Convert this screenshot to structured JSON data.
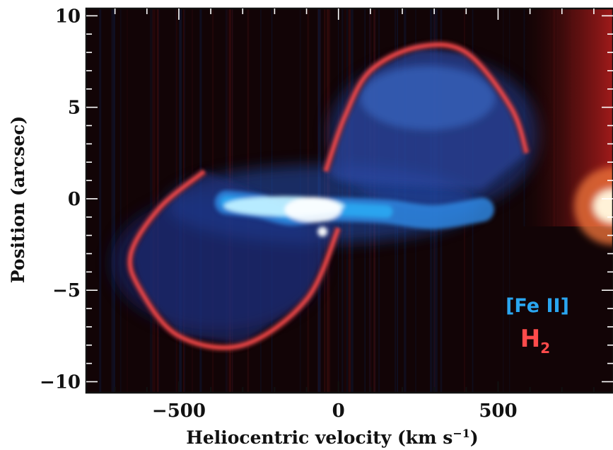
{
  "chart_data": {
    "type": "heatmap",
    "title": "",
    "xlabel_main": "Heliocentric velocity (km s",
    "xlabel_sup": "−1",
    "xlabel_end": ")",
    "ylabel": "Position (arcsec)",
    "xlim": [
      -790,
      860
    ],
    "ylim": [
      -10.6,
      10.4
    ],
    "x_ticks": [
      -500,
      0,
      500
    ],
    "x_tick_labels": [
      "−500",
      "0",
      "500"
    ],
    "y_ticks": [
      10,
      5,
      0,
      -5,
      -10
    ],
    "y_tick_labels": [
      "10",
      "5",
      "0",
      "−5",
      "−10"
    ],
    "minor_x_ticks": [
      -700,
      -600,
      -400,
      -300,
      -200,
      -100,
      100,
      200,
      300,
      400,
      600,
      700,
      800
    ],
    "minor_y_ticks": [
      9,
      8,
      7,
      6,
      4,
      3,
      2,
      1,
      -1,
      -2,
      -3,
      -4,
      -6,
      -7,
      -8,
      -9
    ],
    "background_color": "#120406",
    "series": [
      {
        "name": "[Fe II]",
        "color": "#2aa6f0",
        "structure": "bright inner jet near position 0 plus faint bipolar lobes",
        "core_points": [
          [
            -350,
            -0.2
          ],
          [
            -250,
            -0.4
          ],
          [
            -150,
            -0.8
          ],
          [
            -60,
            -0.6
          ],
          [
            30,
            -0.6
          ],
          [
            150,
            -0.7
          ],
          [
            300,
            -1.0
          ],
          [
            450,
            -0.6
          ]
        ]
      },
      {
        "name": "H2",
        "color": "#ff4b4b",
        "structure": "thin limb-brightened shells of the two bipolar lobes",
        "lower_lobe_shell": [
          [
            0,
            -1.6
          ],
          [
            -100,
            -5.5
          ],
          [
            -300,
            -8.0
          ],
          [
            -500,
            -7.5
          ],
          [
            -620,
            -5.0
          ],
          [
            -650,
            -3.0
          ],
          [
            -560,
            -0.5
          ],
          [
            -420,
            1.5
          ]
        ],
        "upper_lobe_shell": [
          [
            -40,
            1.5
          ],
          [
            20,
            4.5
          ],
          [
            100,
            7.0
          ],
          [
            250,
            8.3
          ],
          [
            400,
            8.0
          ],
          [
            540,
            5.0
          ],
          [
            590,
            2.5
          ]
        ]
      }
    ],
    "legend": {
      "placement": "bottom-right",
      "feii_label": "[Fe II]",
      "h2_label_main": "H",
      "h2_label_sub": "2"
    }
  }
}
